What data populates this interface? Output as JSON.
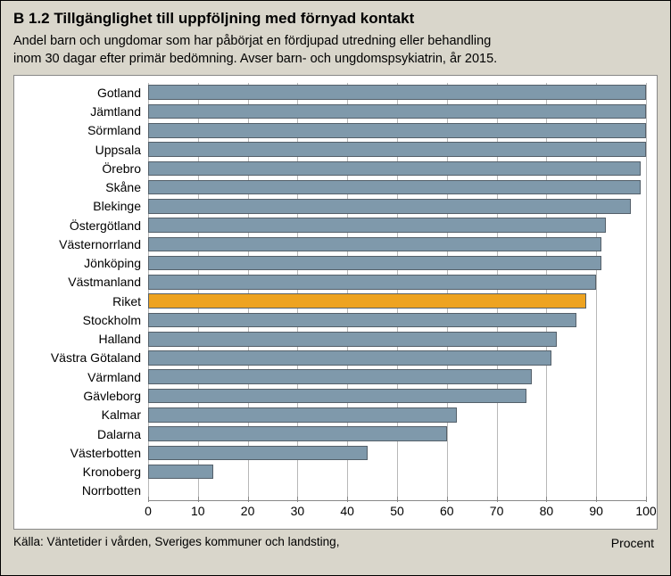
{
  "title": "B 1.2 Tillgänglighet till uppföljning med förnyad kontakt",
  "subtitle_line1": "Andel barn och ungdomar som har påbörjat en fördjupad utredning eller behandling",
  "subtitle_line2": "inom 30 dagar efter primär bedömning.   Avser barn- och ungdomspsykiatrin, år 2015.",
  "source": "Källa: Väntetider i vården, Sveriges kommuner och landsting,",
  "x_axis_label": "Procent",
  "chart": {
    "type": "bar-horizontal",
    "xlim": [
      0,
      100
    ],
    "xtick_step": 10,
    "background": "#ffffff",
    "grid_color": "#b8b8b8",
    "bar_color_default": "#7f99ab",
    "bar_color_highlight": "#eea320",
    "bar_border": "#54606a",
    "highlight_key": "Riket",
    "categories": [
      {
        "label": "Gotland",
        "value": 100
      },
      {
        "label": "Jämtland",
        "value": 100
      },
      {
        "label": "Sörmland",
        "value": 100
      },
      {
        "label": "Uppsala",
        "value": 100
      },
      {
        "label": "Örebro",
        "value": 99
      },
      {
        "label": "Skåne",
        "value": 99
      },
      {
        "label": "Blekinge",
        "value": 97
      },
      {
        "label": "Östergötland",
        "value": 92
      },
      {
        "label": "Västernorrland",
        "value": 91
      },
      {
        "label": "Jönköping",
        "value": 91
      },
      {
        "label": "Västmanland",
        "value": 90
      },
      {
        "label": "Riket",
        "value": 88
      },
      {
        "label": "Stockholm",
        "value": 86
      },
      {
        "label": "Halland",
        "value": 82
      },
      {
        "label": "Västra Götaland",
        "value": 81
      },
      {
        "label": "Värmland",
        "value": 77
      },
      {
        "label": "Gävleborg",
        "value": 76
      },
      {
        "label": "Kalmar",
        "value": 62
      },
      {
        "label": "Dalarna",
        "value": 60
      },
      {
        "label": "Västerbotten",
        "value": 44
      },
      {
        "label": "Kronoberg",
        "value": 13
      },
      {
        "label": "Norrbotten",
        "value": 0
      }
    ],
    "label_fontsize": 14,
    "tick_fontsize": 14
  },
  "colors": {
    "page_bg": "#d9d6cb",
    "plot_bg": "#ffffff",
    "text": "#000000"
  }
}
